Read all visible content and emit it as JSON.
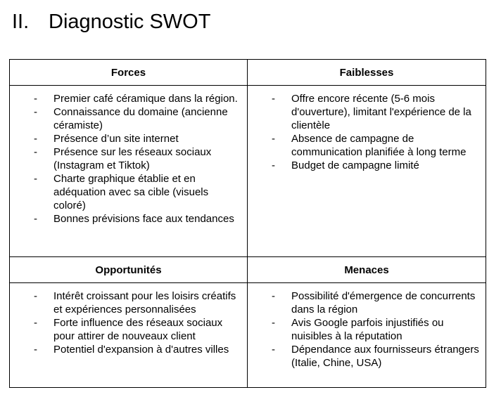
{
  "section": {
    "number": "II.",
    "title": "Diagnostic SWOT"
  },
  "swot": {
    "forces": {
      "header": "Forces",
      "items": [
        "Premier café céramique dans la région.",
        "Connaissance du domaine (ancienne céramiste)",
        "Présence d’un site internet",
        "Présence sur les réseaux sociaux (Instagram et Tiktok)",
        "Charte graphique établie et en adéquation avec sa cible (visuels coloré)",
        "Bonnes prévisions face aux tendances"
      ]
    },
    "faiblesses": {
      "header": "Faiblesses",
      "items": [
        "Offre encore récente (5-6 mois d'ouverture), limitant l'expérience de la clientèle",
        "Absence de campagne de communication planifiée à long terme",
        "Budget de campagne limité"
      ]
    },
    "opportunites": {
      "header": "Opportunités",
      "items": [
        "Intérêt croissant pour les loisirs créatifs et expériences personnalisées",
        "Forte influence des réseaux sociaux pour attirer de nouveaux client",
        "Potentiel d'expansion à d'autres villes"
      ]
    },
    "menaces": {
      "header": "Menaces",
      "items": [
        "Possibilité d'émergence de concurrents dans la région",
        "Avis Google parfois injustifiés ou nuisibles à la réputation",
        "Dépendance aux fournisseurs étrangers (Italie, Chine, USA)"
      ]
    }
  }
}
